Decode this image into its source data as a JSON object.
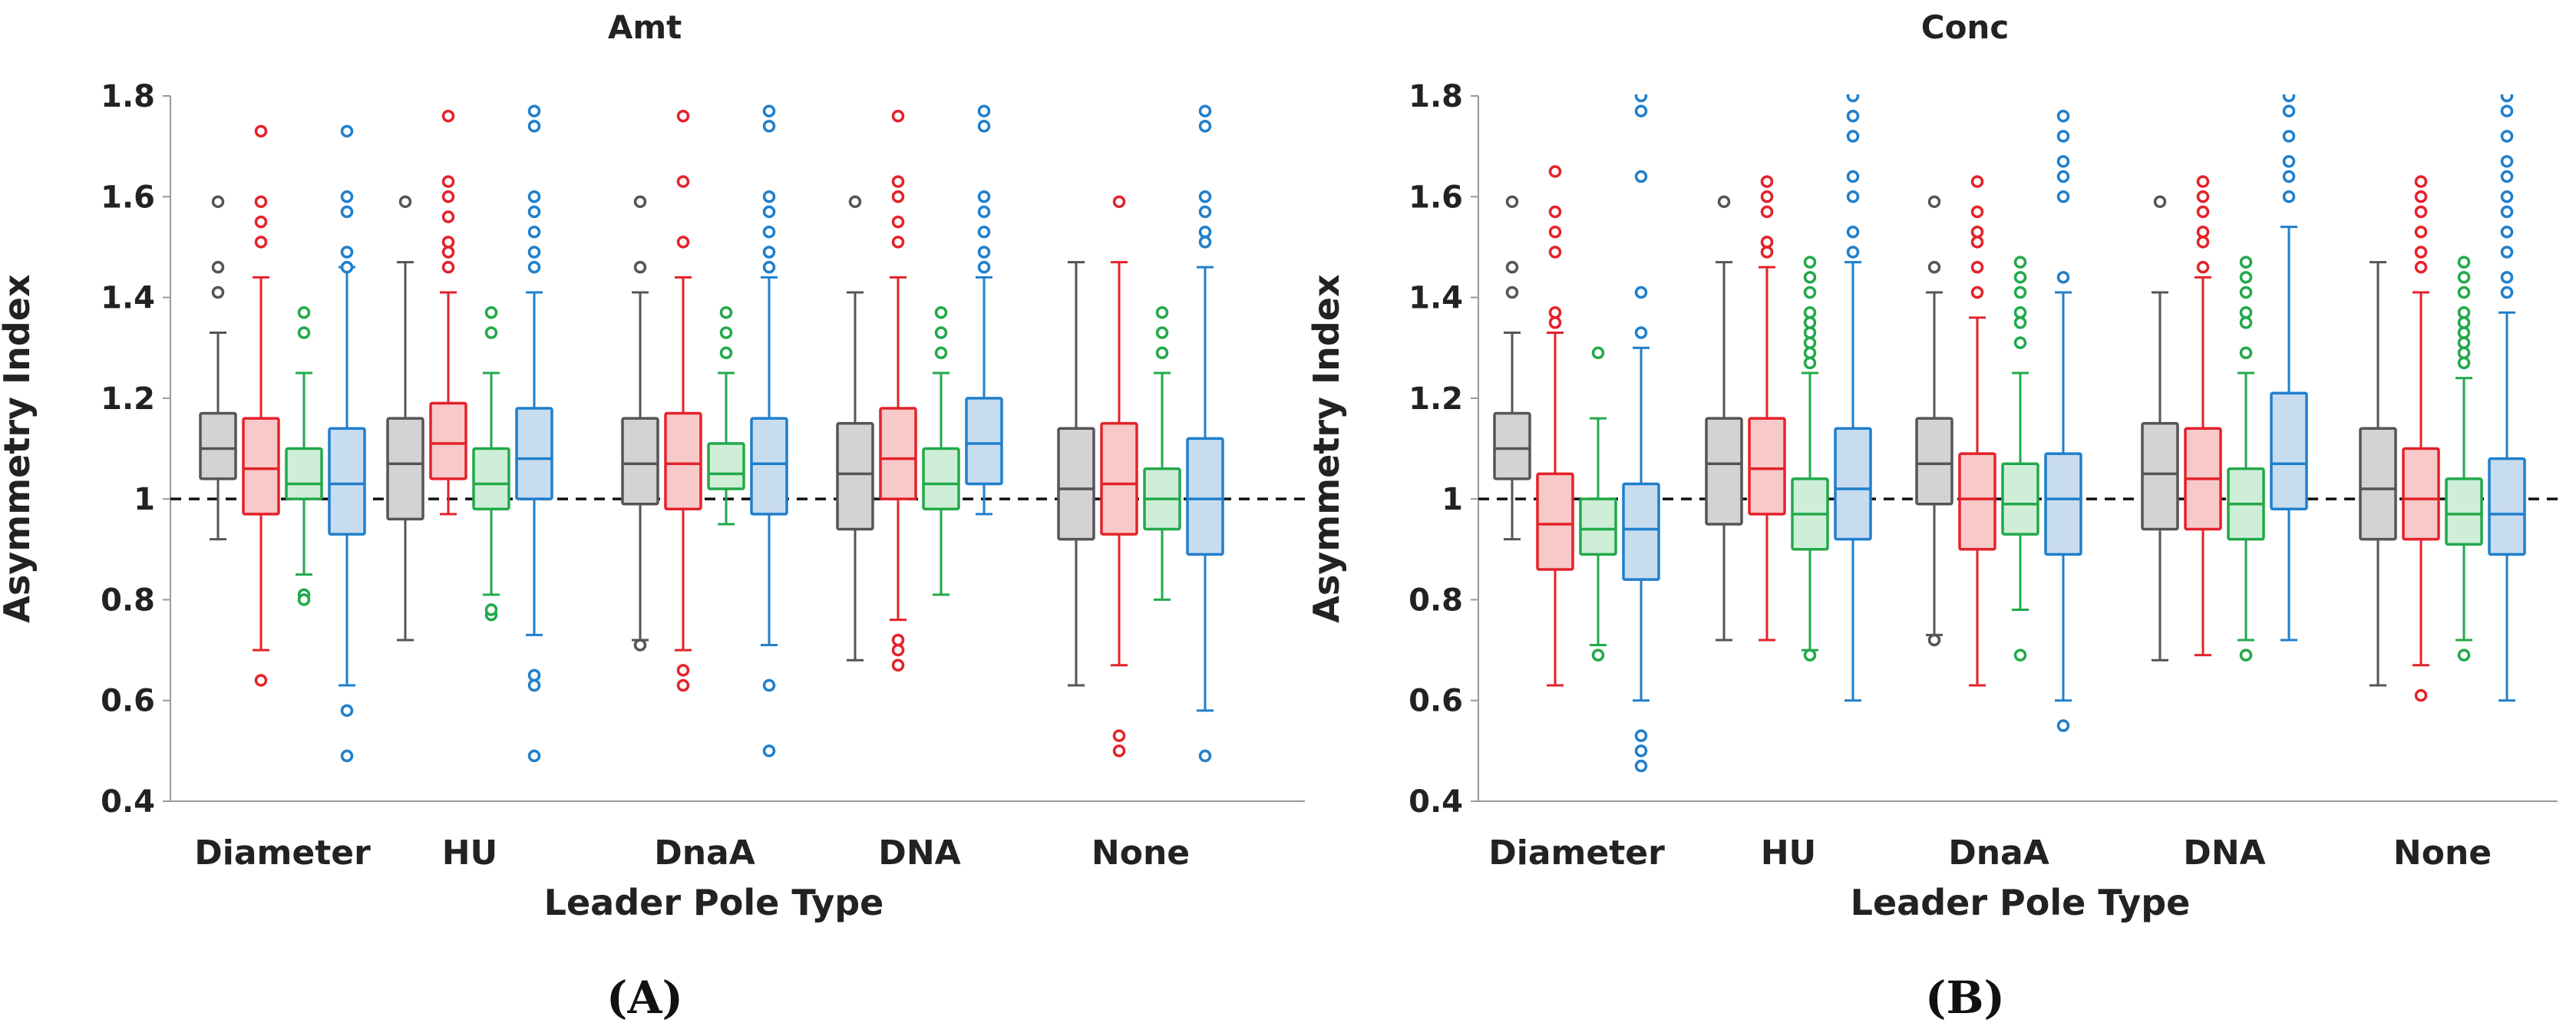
{
  "chart_data": [
    {
      "type": "box",
      "title": "Amt",
      "xlabel": "Leader Pole Type",
      "ylabel": "Asymmetry Index",
      "panel_label": "(A)",
      "ylim": [
        0.4,
        1.8
      ],
      "yticks": [
        "0.4",
        "0.6",
        "0.8",
        "1",
        "1.2",
        "1.4",
        "1.6",
        "1.8"
      ],
      "reference_line": 1.0,
      "categories": [
        "Diameter",
        "HU",
        "DnaA",
        "DNA",
        "None"
      ],
      "series": [
        {
          "name": "gray",
          "stats": [
            {
              "lo": 0.92,
              "q1": 1.04,
              "med": 1.1,
              "q3": 1.17,
              "hi": 1.33,
              "out": [
                1.41,
                1.46,
                1.59
              ]
            },
            {
              "lo": 0.72,
              "q1": 0.96,
              "med": 1.07,
              "q3": 1.16,
              "hi": 1.47,
              "out": [
                1.59
              ]
            },
            {
              "lo": 0.72,
              "q1": 0.99,
              "med": 1.07,
              "q3": 1.16,
              "hi": 1.41,
              "out": [
                0.71,
                1.46,
                1.59
              ]
            },
            {
              "lo": 0.68,
              "q1": 0.94,
              "med": 1.05,
              "q3": 1.15,
              "hi": 1.41,
              "out": [
                1.59
              ]
            },
            {
              "lo": 0.63,
              "q1": 0.92,
              "med": 1.02,
              "q3": 1.14,
              "hi": 1.47,
              "out": []
            }
          ]
        },
        {
          "name": "red",
          "stats": [
            {
              "lo": 0.7,
              "q1": 0.97,
              "med": 1.06,
              "q3": 1.16,
              "hi": 1.44,
              "out": [
                0.64,
                1.51,
                1.55,
                1.59,
                1.73
              ]
            },
            {
              "lo": 0.97,
              "q1": 1.04,
              "med": 1.11,
              "q3": 1.19,
              "hi": 1.41,
              "out": [
                1.46,
                1.49,
                1.51,
                1.56,
                1.6,
                1.63,
                1.76
              ]
            },
            {
              "lo": 0.7,
              "q1": 0.98,
              "med": 1.07,
              "q3": 1.17,
              "hi": 1.44,
              "out": [
                0.63,
                0.66,
                1.51,
                1.63,
                1.76
              ]
            },
            {
              "lo": 0.76,
              "q1": 1.0,
              "med": 1.08,
              "q3": 1.18,
              "hi": 1.44,
              "out": [
                0.67,
                0.7,
                0.72,
                1.51,
                1.55,
                1.6,
                1.63,
                1.76
              ]
            },
            {
              "lo": 0.67,
              "q1": 0.93,
              "med": 1.03,
              "q3": 1.15,
              "hi": 1.47,
              "out": [
                0.5,
                0.53,
                1.59
              ]
            }
          ]
        },
        {
          "name": "green",
          "stats": [
            {
              "lo": 0.85,
              "q1": 1.0,
              "med": 1.03,
              "q3": 1.1,
              "hi": 1.25,
              "out": [
                0.81,
                0.8,
                1.33,
                1.37
              ]
            },
            {
              "lo": 0.81,
              "q1": 0.98,
              "med": 1.03,
              "q3": 1.1,
              "hi": 1.25,
              "out": [
                0.77,
                0.78,
                1.33,
                1.37
              ]
            },
            {
              "lo": 0.95,
              "q1": 1.02,
              "med": 1.05,
              "q3": 1.11,
              "hi": 1.25,
              "out": [
                1.29,
                1.33,
                1.37
              ]
            },
            {
              "lo": 0.81,
              "q1": 0.98,
              "med": 1.03,
              "q3": 1.1,
              "hi": 1.25,
              "out": [
                1.29,
                1.33,
                1.37
              ]
            },
            {
              "lo": 0.8,
              "q1": 0.94,
              "med": 1.0,
              "q3": 1.06,
              "hi": 1.25,
              "out": [
                1.29,
                1.33,
                1.37
              ]
            }
          ]
        },
        {
          "name": "blue",
          "stats": [
            {
              "lo": 0.63,
              "q1": 0.93,
              "med": 1.03,
              "q3": 1.14,
              "hi": 1.46,
              "out": [
                0.49,
                0.58,
                1.46,
                1.49,
                1.57,
                1.6,
                1.73
              ]
            },
            {
              "lo": 0.73,
              "q1": 1.0,
              "med": 1.08,
              "q3": 1.18,
              "hi": 1.41,
              "out": [
                0.49,
                0.63,
                0.65,
                1.46,
                1.49,
                1.53,
                1.57,
                1.6,
                1.74,
                1.77
              ]
            },
            {
              "lo": 0.71,
              "q1": 0.97,
              "med": 1.07,
              "q3": 1.16,
              "hi": 1.44,
              "out": [
                0.5,
                0.63,
                1.46,
                1.49,
                1.53,
                1.57,
                1.6,
                1.74,
                1.77
              ]
            },
            {
              "lo": 0.97,
              "q1": 1.03,
              "med": 1.11,
              "q3": 1.2,
              "hi": 1.44,
              "out": [
                1.46,
                1.49,
                1.53,
                1.57,
                1.6,
                1.74,
                1.77
              ]
            },
            {
              "lo": 0.58,
              "q1": 0.89,
              "med": 1.0,
              "q3": 1.12,
              "hi": 1.46,
              "out": [
                0.49,
                1.51,
                1.53,
                1.57,
                1.6,
                1.74,
                1.77
              ]
            }
          ]
        }
      ]
    },
    {
      "type": "box",
      "title": "Conc",
      "xlabel": "Leader Pole Type",
      "ylabel": "Asymmetry Index",
      "panel_label": "(B)",
      "ylim": [
        0.4,
        1.8
      ],
      "yticks": [
        "0.4",
        "0.6",
        "0.8",
        "1",
        "1.2",
        "1.4",
        "1.6",
        "1.8"
      ],
      "reference_line": 1.0,
      "categories": [
        "Diameter",
        "HU",
        "DnaA",
        "DNA",
        "None"
      ],
      "series": [
        {
          "name": "gray",
          "stats": [
            {
              "lo": 0.92,
              "q1": 1.04,
              "med": 1.1,
              "q3": 1.17,
              "hi": 1.33,
              "out": [
                1.41,
                1.46,
                1.59
              ]
            },
            {
              "lo": 0.72,
              "q1": 0.95,
              "med": 1.07,
              "q3": 1.16,
              "hi": 1.47,
              "out": [
                1.59
              ]
            },
            {
              "lo": 0.73,
              "q1": 0.99,
              "med": 1.07,
              "q3": 1.16,
              "hi": 1.41,
              "out": [
                0.72,
                1.46,
                1.59
              ]
            },
            {
              "lo": 0.68,
              "q1": 0.94,
              "med": 1.05,
              "q3": 1.15,
              "hi": 1.41,
              "out": [
                1.59
              ]
            },
            {
              "lo": 0.63,
              "q1": 0.92,
              "med": 1.02,
              "q3": 1.14,
              "hi": 1.47,
              "out": []
            }
          ]
        },
        {
          "name": "red",
          "stats": [
            {
              "lo": 0.63,
              "q1": 0.86,
              "med": 0.95,
              "q3": 1.05,
              "hi": 1.33,
              "out": [
                1.35,
                1.37,
                1.49,
                1.53,
                1.57,
                1.65
              ]
            },
            {
              "lo": 0.72,
              "q1": 0.97,
              "med": 1.06,
              "q3": 1.16,
              "hi": 1.46,
              "out": [
                1.49,
                1.51,
                1.57,
                1.6,
                1.63
              ]
            },
            {
              "lo": 0.63,
              "q1": 0.9,
              "med": 1.0,
              "q3": 1.09,
              "hi": 1.36,
              "out": [
                1.41,
                1.46,
                1.51,
                1.53,
                1.57,
                1.63
              ]
            },
            {
              "lo": 0.69,
              "q1": 0.94,
              "med": 1.04,
              "q3": 1.14,
              "hi": 1.44,
              "out": [
                1.46,
                1.51,
                1.53,
                1.57,
                1.6,
                1.63
              ]
            },
            {
              "lo": 0.67,
              "q1": 0.92,
              "med": 1.0,
              "q3": 1.1,
              "hi": 1.41,
              "out": [
                0.61,
                1.46,
                1.49,
                1.53,
                1.57,
                1.6,
                1.63
              ]
            }
          ]
        },
        {
          "name": "green",
          "stats": [
            {
              "lo": 0.71,
              "q1": 0.89,
              "med": 0.94,
              "q3": 1.0,
              "hi": 1.16,
              "out": [
                0.69,
                1.29
              ]
            },
            {
              "lo": 0.7,
              "q1": 0.9,
              "med": 0.97,
              "q3": 1.04,
              "hi": 1.25,
              "out": [
                0.69,
                1.27,
                1.29,
                1.31,
                1.33,
                1.35,
                1.37,
                1.41,
                1.44,
                1.47
              ]
            },
            {
              "lo": 0.78,
              "q1": 0.93,
              "med": 0.99,
              "q3": 1.07,
              "hi": 1.25,
              "out": [
                0.69,
                1.31,
                1.35,
                1.37,
                1.41,
                1.44,
                1.47
              ]
            },
            {
              "lo": 0.72,
              "q1": 0.92,
              "med": 0.99,
              "q3": 1.06,
              "hi": 1.25,
              "out": [
                0.69,
                1.29,
                1.35,
                1.37,
                1.41,
                1.44,
                1.47
              ]
            },
            {
              "lo": 0.72,
              "q1": 0.91,
              "med": 0.97,
              "q3": 1.04,
              "hi": 1.24,
              "out": [
                0.69,
                1.27,
                1.29,
                1.31,
                1.33,
                1.35,
                1.37,
                1.41,
                1.44,
                1.47
              ]
            }
          ]
        },
        {
          "name": "blue",
          "stats": [
            {
              "lo": 0.6,
              "q1": 0.84,
              "med": 0.94,
              "q3": 1.03,
              "hi": 1.3,
              "out": [
                0.47,
                0.5,
                0.53,
                1.33,
                1.41,
                1.64,
                1.77,
                1.8
              ]
            },
            {
              "lo": 0.6,
              "q1": 0.92,
              "med": 1.02,
              "q3": 1.14,
              "hi": 1.47,
              "out": [
                1.49,
                1.53,
                1.6,
                1.64,
                1.72,
                1.76,
                1.8
              ]
            },
            {
              "lo": 0.6,
              "q1": 0.89,
              "med": 1.0,
              "q3": 1.09,
              "hi": 1.41,
              "out": [
                0.55,
                1.44,
                1.6,
                1.64,
                1.67,
                1.72,
                1.76
              ]
            },
            {
              "lo": 0.72,
              "q1": 0.98,
              "med": 1.07,
              "q3": 1.21,
              "hi": 1.54,
              "out": [
                1.6,
                1.64,
                1.67,
                1.72,
                1.77,
                1.8
              ]
            },
            {
              "lo": 0.6,
              "q1": 0.89,
              "med": 0.97,
              "q3": 1.08,
              "hi": 1.37,
              "out": [
                1.41,
                1.44,
                1.49,
                1.53,
                1.57,
                1.6,
                1.64,
                1.67,
                1.72,
                1.77,
                1.8
              ]
            }
          ]
        }
      ]
    }
  ],
  "colors": {
    "gray": {
      "line": "#555555",
      "fill": "#d3d3d3"
    },
    "red": {
      "line": "#e4222a",
      "fill": "#f8c9c9"
    },
    "green": {
      "line": "#22a94a",
      "fill": "#cfeed8"
    },
    "blue": {
      "line": "#1f7fcc",
      "fill": "#c8dcf0"
    }
  }
}
